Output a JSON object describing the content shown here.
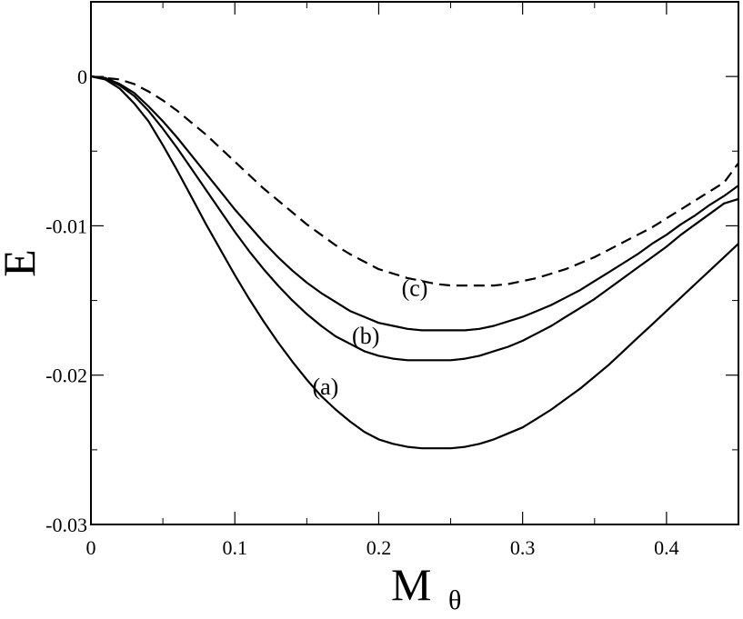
{
  "chart_data": {
    "type": "line",
    "title": "",
    "xlabel": "M",
    "xlabel_subscript": "θ",
    "ylabel": "E",
    "xlim": [
      0,
      0.45
    ],
    "ylim": [
      -0.03,
      0.005
    ],
    "x_ticks": [
      0,
      0.1,
      0.2,
      0.3,
      0.4
    ],
    "x_tick_labels": [
      "0",
      "0.1",
      "0.2",
      "0.3",
      "0.4"
    ],
    "y_ticks": [
      0,
      -0.01,
      -0.02,
      -0.03
    ],
    "y_tick_labels": [
      "0",
      "-0.01",
      "-0.02",
      "-0.03"
    ],
    "x_minor_ticks": [
      0.05,
      0.15,
      0.25,
      0.35
    ],
    "y_minor_ticks": [
      -0.005,
      -0.015,
      -0.025
    ],
    "grid": false,
    "legend": "none",
    "series": [
      {
        "label": "(a)",
        "style": "solid",
        "x": [
          0,
          0.01,
          0.02,
          0.03,
          0.04,
          0.05,
          0.06,
          0.07,
          0.08,
          0.09,
          0.1,
          0.11,
          0.12,
          0.13,
          0.14,
          0.15,
          0.16,
          0.17,
          0.18,
          0.19,
          0.2,
          0.21,
          0.22,
          0.23,
          0.24,
          0.25,
          0.26,
          0.27,
          0.28,
          0.29,
          0.3,
          0.31,
          0.32,
          0.33,
          0.34,
          0.35,
          0.36,
          0.37,
          0.38,
          0.39,
          0.4,
          0.41,
          0.42,
          0.43,
          0.44,
          0.45
        ],
        "y": [
          0,
          -0.0002,
          -0.0008,
          -0.0018,
          -0.003,
          -0.0046,
          -0.0063,
          -0.0081,
          -0.0099,
          -0.0116,
          -0.0133,
          -0.0149,
          -0.0164,
          -0.0178,
          -0.0191,
          -0.0203,
          -0.0214,
          -0.0223,
          -0.0231,
          -0.0238,
          -0.0243,
          -0.0246,
          -0.0248,
          -0.0249,
          -0.0249,
          -0.0249,
          -0.0248,
          -0.0246,
          -0.0243,
          -0.0239,
          -0.0235,
          -0.0229,
          -0.0223,
          -0.0216,
          -0.0209,
          -0.0201,
          -0.0193,
          -0.0184,
          -0.0175,
          -0.0166,
          -0.0157,
          -0.0148,
          -0.0139,
          -0.013,
          -0.0121,
          -0.0112
        ]
      },
      {
        "label": "(b)",
        "style": "solid",
        "x": [
          0,
          0.01,
          0.02,
          0.03,
          0.04,
          0.05,
          0.06,
          0.07,
          0.08,
          0.09,
          0.1,
          0.11,
          0.12,
          0.13,
          0.14,
          0.15,
          0.16,
          0.17,
          0.18,
          0.19,
          0.2,
          0.21,
          0.22,
          0.23,
          0.24,
          0.25,
          0.26,
          0.27,
          0.28,
          0.29,
          0.3,
          0.31,
          0.32,
          0.33,
          0.34,
          0.35,
          0.36,
          0.37,
          0.38,
          0.39,
          0.4,
          0.41,
          0.42,
          0.43,
          0.44,
          0.45
        ],
        "y": [
          0,
          -0.0001,
          -0.0006,
          -0.0013,
          -0.0023,
          -0.0035,
          -0.0048,
          -0.0062,
          -0.0076,
          -0.009,
          -0.0104,
          -0.0117,
          -0.0129,
          -0.014,
          -0.015,
          -0.0159,
          -0.0167,
          -0.0174,
          -0.0179,
          -0.0184,
          -0.0187,
          -0.0189,
          -0.019,
          -0.019,
          -0.019,
          -0.019,
          -0.0189,
          -0.0187,
          -0.0184,
          -0.0181,
          -0.0177,
          -0.0172,
          -0.0167,
          -0.0161,
          -0.0155,
          -0.0149,
          -0.0142,
          -0.0135,
          -0.0128,
          -0.0121,
          -0.0114,
          -0.0106,
          -0.0099,
          -0.0092,
          -0.0085,
          -0.0082
        ]
      },
      {
        "label": "(c)",
        "style": "solid",
        "x": [
          0,
          0.01,
          0.02,
          0.03,
          0.04,
          0.05,
          0.06,
          0.07,
          0.08,
          0.09,
          0.1,
          0.11,
          0.12,
          0.13,
          0.14,
          0.15,
          0.16,
          0.17,
          0.18,
          0.19,
          0.2,
          0.21,
          0.22,
          0.23,
          0.24,
          0.25,
          0.26,
          0.27,
          0.28,
          0.29,
          0.3,
          0.31,
          0.32,
          0.33,
          0.34,
          0.35,
          0.36,
          0.37,
          0.38,
          0.39,
          0.4,
          0.41,
          0.42,
          0.43,
          0.44,
          0.45
        ],
        "y": [
          0,
          -0.0001,
          -0.0005,
          -0.0011,
          -0.002,
          -0.003,
          -0.0041,
          -0.0053,
          -0.0065,
          -0.0077,
          -0.0089,
          -0.01,
          -0.0111,
          -0.0121,
          -0.013,
          -0.0138,
          -0.0145,
          -0.0151,
          -0.0157,
          -0.0161,
          -0.0165,
          -0.0167,
          -0.0169,
          -0.017,
          -0.017,
          -0.017,
          -0.017,
          -0.0169,
          -0.0167,
          -0.0164,
          -0.0161,
          -0.0157,
          -0.0153,
          -0.0148,
          -0.0143,
          -0.0137,
          -0.0131,
          -0.0125,
          -0.0119,
          -0.0112,
          -0.0106,
          -0.0099,
          -0.0093,
          -0.0086,
          -0.008,
          -0.0073
        ]
      },
      {
        "label": "",
        "style": "dashed",
        "x": [
          0,
          0.01,
          0.02,
          0.03,
          0.04,
          0.05,
          0.06,
          0.07,
          0.08,
          0.09,
          0.1,
          0.11,
          0.12,
          0.13,
          0.14,
          0.15,
          0.16,
          0.17,
          0.18,
          0.19,
          0.2,
          0.21,
          0.22,
          0.23,
          0.24,
          0.25,
          0.26,
          0.27,
          0.28,
          0.29,
          0.3,
          0.31,
          0.32,
          0.33,
          0.34,
          0.35,
          0.36,
          0.37,
          0.38,
          0.39,
          0.4,
          0.41,
          0.42,
          0.43,
          0.44,
          0.45
        ],
        "y": [
          0,
          -0.0001,
          -0.0002,
          -0.0005,
          -0.001,
          -0.0016,
          -0.0023,
          -0.0031,
          -0.0039,
          -0.0048,
          -0.0057,
          -0.0066,
          -0.0075,
          -0.0083,
          -0.0091,
          -0.0099,
          -0.0106,
          -0.0113,
          -0.0119,
          -0.0124,
          -0.0129,
          -0.0132,
          -0.0135,
          -0.0137,
          -0.0139,
          -0.014,
          -0.014,
          -0.014,
          -0.014,
          -0.0139,
          -0.0137,
          -0.0135,
          -0.0132,
          -0.0129,
          -0.0125,
          -0.0121,
          -0.0116,
          -0.0111,
          -0.0106,
          -0.0101,
          -0.0095,
          -0.0089,
          -0.0083,
          -0.0077,
          -0.0071,
          -0.0058
        ]
      }
    ],
    "annotations": [
      {
        "text": "(c)",
        "x": 0.225,
        "y": -0.0147
      },
      {
        "text": "(b)",
        "x": 0.191,
        "y": -0.0179
      },
      {
        "text": "(a)",
        "x": 0.163,
        "y": -0.0213
      }
    ]
  }
}
